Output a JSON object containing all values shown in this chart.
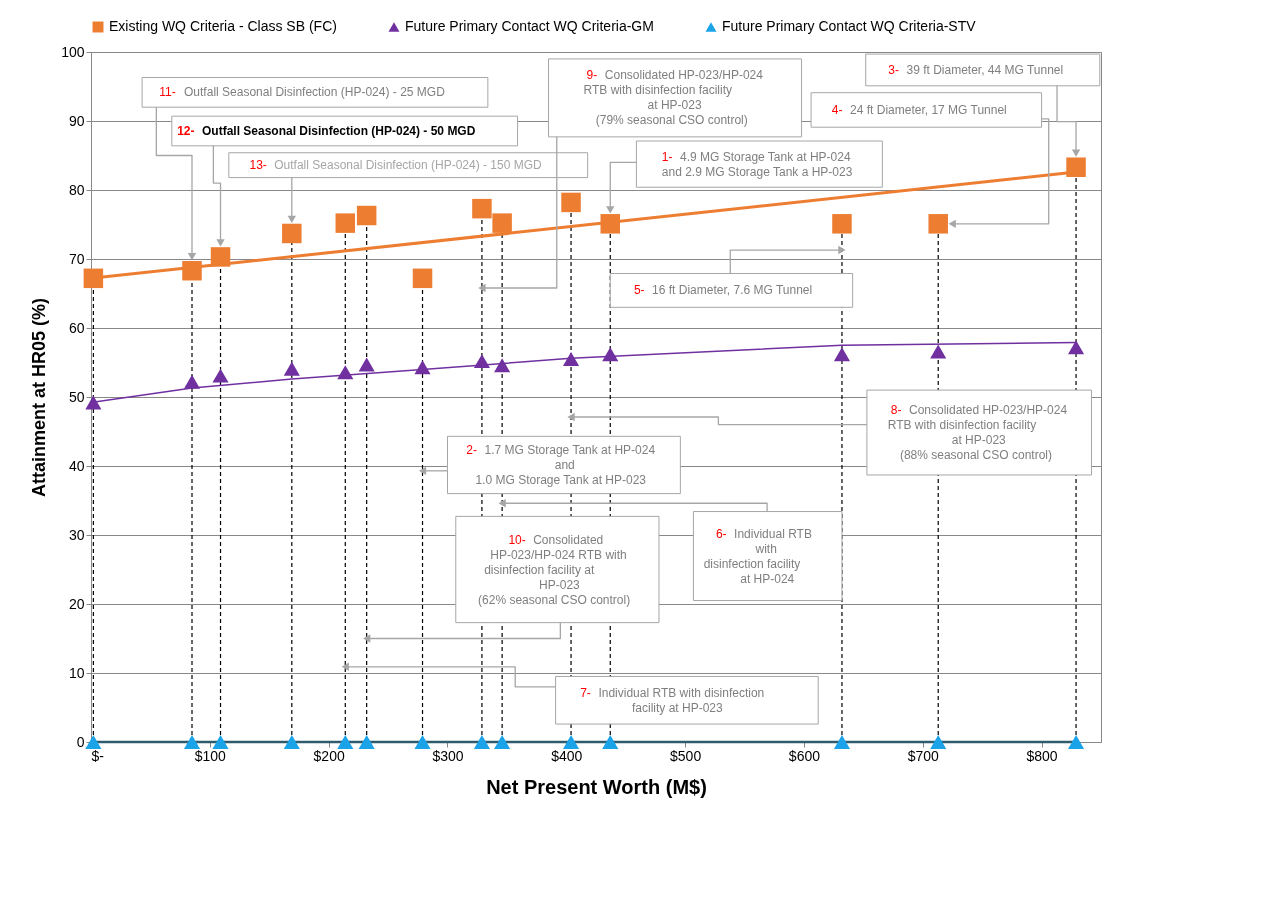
{
  "chart_data": {
    "type": "lollipop",
    "xlabel": "Net Present Worth (M$)",
    "ylabel": "Attainment at HR05 (%)",
    "xlim": [
      0,
      850
    ],
    "ylim": [
      0,
      100
    ],
    "xticks": [
      {
        "value": 0,
        "label": "$-"
      },
      {
        "value": 100,
        "label": "$100"
      },
      {
        "value": 200,
        "label": "$200"
      },
      {
        "value": 300,
        "label": "$300"
      },
      {
        "value": 400,
        "label": "$400"
      },
      {
        "value": 500,
        "label": "$500"
      },
      {
        "value": 600,
        "label": "$600"
      },
      {
        "value": 700,
        "label": "$700"
      },
      {
        "value": 800,
        "label": "$800"
      }
    ],
    "yticks": [
      0,
      10,
      20,
      30,
      40,
      50,
      60,
      70,
      80,
      90,
      100
    ],
    "grid": "y",
    "legend": "top",
    "x": [
      2,
      85,
      109,
      169,
      214,
      232,
      279,
      329,
      346,
      404,
      437,
      632,
      713,
      829
    ],
    "series": [
      {
        "name": "Existing WQ Criteria - Class SB (FC)",
        "marker": "square",
        "line_style": "dashed",
        "color": "#ed7d31",
        "values": [
          67.2,
          68.3,
          70.3,
          73.7,
          75.2,
          76.3,
          67.2,
          77.3,
          75.2,
          78.2,
          75.1,
          75.1,
          75.1,
          83.3
        ]
      },
      {
        "name": "Future Primary Contact WQ Criteria-GM",
        "type": "scatter",
        "marker": "triangle",
        "color": "#7030a0",
        "values": [
          49.2,
          52.2,
          53.1,
          54.1,
          53.6,
          54.7,
          54.3,
          55.2,
          54.6,
          55.5,
          56.2,
          56.2,
          56.6,
          57.2
        ]
      },
      {
        "name": "Future Primary Contact WQ Criteria-STV",
        "type": "scatter",
        "marker": "triangle",
        "color": "#1aa3e8",
        "values": [
          0,
          0,
          0,
          0,
          0,
          0,
          0,
          0,
          0,
          0,
          0,
          0,
          0,
          0
        ]
      },
      {
        "type": "line",
        "color": "#ed7d31",
        "x": [
          0,
          829
        ],
        "values": [
          67.2,
          82.6
        ]
      },
      {
        "type": "line",
        "color": "#7030a0",
        "x": [
          0,
          85,
          169,
          279,
          404,
          632,
          829
        ],
        "values": [
          49.2,
          51.3,
          52.6,
          54.0,
          55.6,
          57.5,
          57.9
        ]
      },
      {
        "type": "line",
        "color": "#2e5c6e",
        "x": [
          0,
          829
        ],
        "values": [
          0,
          0
        ]
      }
    ],
    "annotations": [
      "1- 4.9 MG Storage Tank at HP-024\nand 2.9 MG Storage Tank a HP-023",
      "2- 1.7 MG Storage Tank at HP-024\nand\n1.0 MG Storage Tank at HP-023",
      "3- 39 ft Diameter, 44 MG Tunnel",
      "4- 24 ft Diameter, 17 MG Tunnel",
      "5- 16 ft Diameter, 7.6 MG Tunnel",
      "6- Individual RTB\nwith\ndisinfection facility\nat HP-024",
      "7- Individual RTB with disinfection\nfacility at HP-023",
      "8- Consolidated HP-023/HP-024\nRTB with disinfection facility\nat HP-023\n(88% seasonal CSO control)",
      "9- Consolidated HP-023/HP-024\nRTB with disinfection facility\nat HP-023\n(79% seasonal CSO control)",
      "10- Consolidated\nHP-023/HP-024 RTB with\ndisinfection facility at\nHP-023\n(62% seasonal CSO control)",
      "11- Outfall Seasonal Disinfection (HP-024) - 25 MGD",
      "12- Outfall Seasonal Disinfection (HP-024) - 50 MGD",
      "13- Outfall Seasonal Disinfection (HP-024) - 150 MGD"
    ]
  }
}
